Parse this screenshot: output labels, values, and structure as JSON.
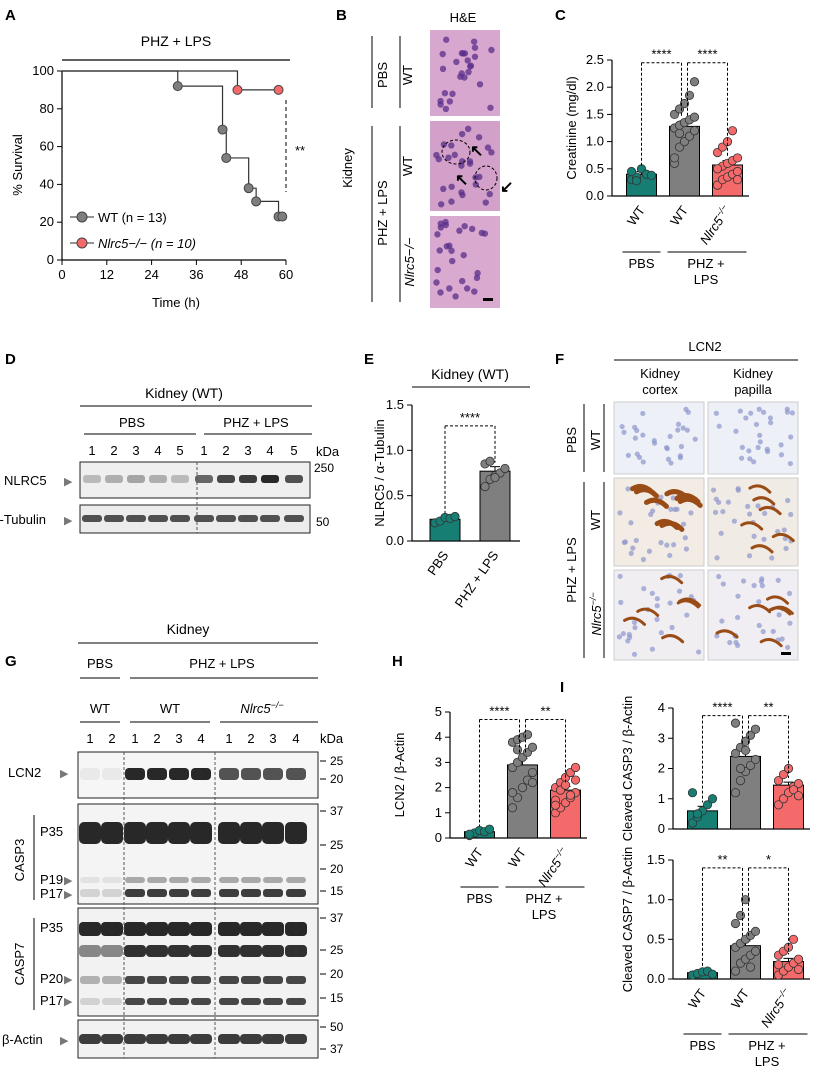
{
  "colors": {
    "wt": "#7f7f7f",
    "ko": "#f46a6a",
    "pbs": "#177e74",
    "he": "#d7a0c8",
    "ihc": "#eef0f7",
    "stain": "#9a4c17",
    "blot": "#1c1c1c"
  },
  "panels": {
    "a": "A",
    "b": "B",
    "c": "C",
    "d": "D",
    "e": "E",
    "f": "F",
    "g": "G",
    "h": "H",
    "i": "I"
  },
  "common": {
    "pbs": "PBS",
    "phz_lps": "PHZ + LPS",
    "phz": "PHZ +",
    "lps": "LPS",
    "wt": "WT",
    "ko": "Nlrc5",
    "ko_sup": "−/−",
    "kidney": "Kidney",
    "kda": "kDa",
    "sig4": "****",
    "sig2": "**",
    "sig1": "*"
  },
  "panel_b": {
    "title": "H&E",
    "rows": [
      "WT",
      "WT",
      "Nlrc5−/−"
    ]
  },
  "panel_d": {
    "title": "Kidney (WT)",
    "lanes": [
      "1",
      "2",
      "3",
      "4",
      "5",
      "1",
      "2",
      "3",
      "4",
      "5"
    ],
    "bands": [
      "NLRC5",
      "α-Tubulin"
    ],
    "markers": [
      "250",
      "50"
    ]
  },
  "panel_f": {
    "title": "LCN2",
    "col1a": "Kidney",
    "col1b": "cortex",
    "col2a": "Kidney",
    "col2b": "papilla"
  },
  "panel_g": {
    "title": "Kidney",
    "lanes": [
      "1",
      "2",
      "1",
      "2",
      "3",
      "4",
      "1",
      "2",
      "3",
      "4"
    ],
    "bands": [
      "LCN2",
      "P35",
      "P19",
      "P17",
      "P35",
      "P20",
      "P17",
      "β-Actin"
    ],
    "groups": [
      "CASP3",
      "CASP7"
    ],
    "markers": [
      "25",
      "20",
      "37",
      "25",
      "20",
      "15",
      "37",
      "25",
      "20",
      "15",
      "50",
      "37"
    ]
  },
  "chart_data": [
    {
      "panel": "A",
      "type": "line",
      "title": "PHZ + LPS",
      "xlabel": "Time (h)",
      "ylabel": "% Survival",
      "xlim": [
        0,
        60
      ],
      "ylim": [
        0,
        100
      ],
      "xticks": [
        "0",
        "12",
        "24",
        "36",
        "48",
        "60"
      ],
      "yticks": [
        "0",
        "20",
        "40",
        "60",
        "80",
        "100"
      ],
      "significance": "**",
      "series": [
        {
          "name": "WT (n = 13)",
          "x": [
            0,
            31,
            31,
            43,
            43,
            44,
            44,
            50,
            50,
            52,
            52,
            58,
            58,
            59
          ],
          "y": [
            100,
            100,
            92,
            92,
            69,
            69,
            54,
            54,
            38,
            38,
            31,
            31,
            23,
            23
          ],
          "markers_x": [
            31,
            43,
            44,
            50,
            52,
            58,
            59
          ],
          "markers_y": [
            92,
            69,
            54,
            38,
            31,
            23,
            23
          ]
        },
        {
          "name": "Nlrc5−/− (n = 10)",
          "x": [
            0,
            47,
            47,
            58
          ],
          "y": [
            100,
            100,
            90,
            90
          ],
          "markers_x": [
            47,
            58
          ],
          "markers_y": [
            90,
            90
          ]
        }
      ]
    },
    {
      "panel": "C",
      "type": "bar",
      "ylabel": "Creatinine (mg/dl)",
      "ylim": [
        0,
        2.5
      ],
      "yticks": [
        "0.0",
        "0.5",
        "1.0",
        "1.5",
        "2.0",
        "2.5"
      ],
      "categories": [
        "WT",
        "WT",
        "Nlrc5−/−"
      ],
      "groups": [
        "PBS",
        "PHZ + LPS"
      ],
      "values": [
        0.4,
        1.28,
        0.57
      ],
      "errors": [
        0.05,
        0.1,
        0.08
      ],
      "significance": [
        "****",
        "****"
      ],
      "points": [
        [
          0.3,
          0.35,
          0.5,
          0.4,
          0.38,
          0.45,
          0.28
        ],
        [
          0.6,
          0.9,
          1.0,
          1.1,
          1.2,
          1.25,
          1.3,
          1.35,
          1.4,
          1.45,
          1.5,
          1.6,
          1.7,
          1.85,
          2.1,
          0.7,
          1.15
        ],
        [
          0.2,
          0.3,
          0.35,
          0.4,
          0.45,
          0.5,
          0.55,
          0.6,
          0.65,
          0.7,
          0.8,
          0.9,
          1.0,
          1.2,
          0.3,
          0.5
        ]
      ]
    },
    {
      "panel": "E",
      "type": "bar",
      "title": "Kidney (WT)",
      "ylabel": "NLRC5 / α-Tubulin",
      "ylim": [
        0,
        1.5
      ],
      "yticks": [
        "0.0",
        "0.5",
        "1.0",
        "1.5"
      ],
      "categories": [
        "PBS",
        "PHZ + LPS"
      ],
      "values": [
        0.24,
        0.77
      ],
      "errors": [
        0.02,
        0.05
      ],
      "significance": [
        "****"
      ],
      "points": [
        [
          0.2,
          0.22,
          0.26,
          0.25,
          0.27
        ],
        [
          0.6,
          0.68,
          0.72,
          0.75,
          0.8,
          0.85,
          0.88,
          0.7
        ]
      ]
    },
    {
      "panel": "H",
      "type": "bar",
      "ylabel": "LCN2 / β-Actin",
      "ylim": [
        0,
        5
      ],
      "yticks": [
        "0",
        "1",
        "2",
        "3",
        "4",
        "5"
      ],
      "categories": [
        "WT",
        "WT",
        "Nlrc5−/−"
      ],
      "groups": [
        "PBS",
        "PHZ + LPS"
      ],
      "values": [
        0.25,
        2.9,
        1.9
      ],
      "errors": [
        0.05,
        0.25,
        0.15
      ],
      "significance": [
        "****",
        "**"
      ],
      "points": [
        [
          0.1,
          0.2,
          0.3,
          0.25,
          0.35,
          0.15
        ],
        [
          1.2,
          1.6,
          2.0,
          2.3,
          2.6,
          2.8,
          3.0,
          3.2,
          3.4,
          3.6,
          3.8,
          3.9,
          4.0,
          4.1,
          2.2,
          1.8,
          3.5
        ],
        [
          1.0,
          1.2,
          1.4,
          1.6,
          1.8,
          2.0,
          2.2,
          2.4,
          2.6,
          2.8,
          1.5,
          1.9,
          2.1,
          1.7,
          2.3,
          1.3
        ]
      ]
    },
    {
      "panel": "I-top",
      "type": "bar",
      "ylabel": "Cleaved CASP3 / β-Actin",
      "ylim": [
        0,
        4
      ],
      "yticks": [
        "0",
        "1",
        "2",
        "3",
        "4"
      ],
      "categories": [
        "WT",
        "WT",
        "Nlrc5−/−"
      ],
      "values": [
        0.6,
        2.4,
        1.45
      ],
      "errors": [
        0.15,
        0.2,
        0.1
      ],
      "significance": [
        "****",
        "**"
      ],
      "points": [
        [
          0.2,
          0.4,
          0.6,
          0.8,
          1.0,
          1.2,
          0.5
        ],
        [
          1.2,
          1.6,
          1.9,
          2.1,
          2.3,
          2.5,
          2.7,
          2.9,
          3.1,
          3.3,
          3.5,
          2.0,
          2.6
        ],
        [
          0.8,
          1.0,
          1.2,
          1.4,
          1.5,
          1.6,
          1.8,
          2.0,
          1.3,
          1.1
        ]
      ]
    },
    {
      "panel": "I-bottom",
      "type": "bar",
      "ylabel": "Cleaved CASP7 / β-Actin",
      "ylim": [
        0,
        1.5
      ],
      "yticks": [
        "0.0",
        "0.5",
        "1.0",
        "1.5"
      ],
      "categories": [
        "WT",
        "WT",
        "Nlrc5−/−"
      ],
      "groups": [
        "PBS",
        "PHZ + LPS"
      ],
      "values": [
        0.08,
        0.42,
        0.22
      ],
      "errors": [
        0.02,
        0.06,
        0.04
      ],
      "significance": [
        "**",
        "*"
      ],
      "points": [
        [
          0.05,
          0.07,
          0.09,
          0.1,
          0.06
        ],
        [
          0.1,
          0.2,
          0.25,
          0.3,
          0.35,
          0.4,
          0.45,
          0.5,
          0.55,
          0.6,
          0.7,
          0.8,
          1.0,
          0.15
        ],
        [
          0.05,
          0.1,
          0.15,
          0.2,
          0.25,
          0.3,
          0.35,
          0.4,
          0.5,
          0.12,
          0.18
        ]
      ]
    }
  ]
}
